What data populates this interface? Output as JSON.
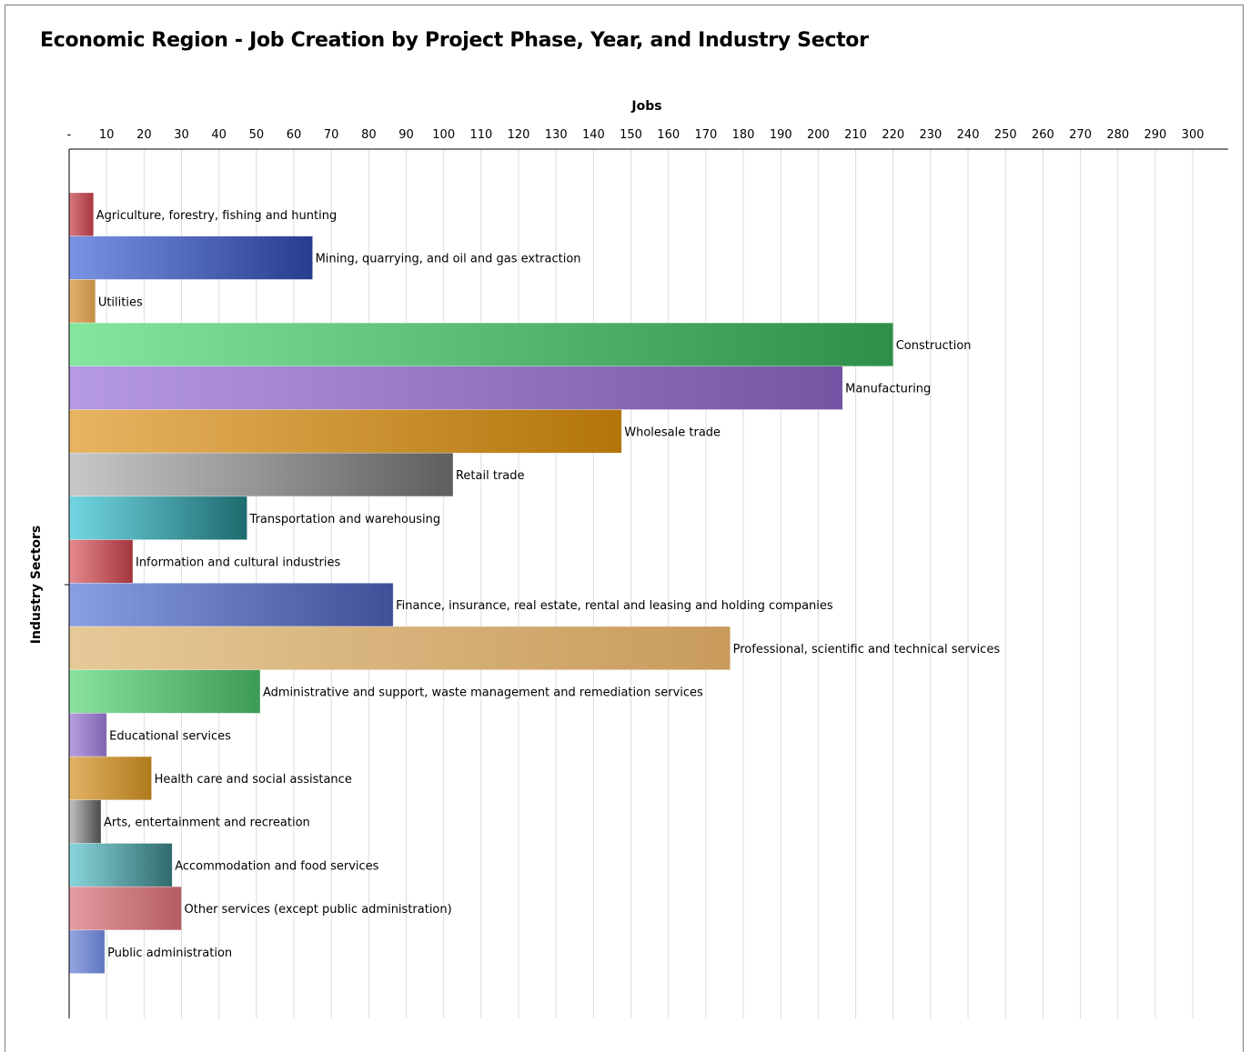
{
  "title": "Economic Region - Job Creation by Project Phase, Year, and Industry Sector",
  "chart_data": {
    "type": "bar",
    "orientation": "horizontal",
    "title": "Economic Region - Job Creation by Project Phase, Year, and Industry Sector",
    "xlabel": "Jobs",
    "ylabel": "Industry Sectors",
    "xlim": [
      0,
      310
    ],
    "x_tick_labels": [
      "-",
      "10",
      "20",
      "30",
      "40",
      "50",
      "60",
      "70",
      "80",
      "90",
      "100",
      "110",
      "120",
      "130",
      "140",
      "150",
      "160",
      "170",
      "180",
      "190",
      "200",
      "210",
      "220",
      "230",
      "240",
      "250",
      "260",
      "270",
      "280",
      "290",
      "300"
    ],
    "x_tick_values": [
      0,
      10,
      20,
      30,
      40,
      50,
      60,
      70,
      80,
      90,
      100,
      110,
      120,
      130,
      140,
      150,
      160,
      170,
      180,
      190,
      200,
      210,
      220,
      230,
      240,
      250,
      260,
      270,
      280,
      290,
      300
    ],
    "grid": "vertical",
    "legend": "none",
    "categories": [
      "Agriculture, forestry, fishing and hunting",
      "Mining, quarrying, and oil and gas extraction",
      "Utilities",
      "Construction",
      "Manufacturing",
      "Wholesale trade",
      "Retail trade",
      "Transportation and warehousing",
      "Information and cultural industries",
      "Finance, insurance, real estate, rental and leasing and holding companies",
      "Professional, scientific and technical services",
      "Administrative and support, waste management and remediation services",
      "Educational services",
      "Health care and social assistance",
      "Arts, entertainment and recreation",
      "Accommodation and food services",
      "Other services (except public administration)",
      "Public administration"
    ],
    "values": [
      6.5,
      65,
      7,
      220,
      206.5,
      147.5,
      102.5,
      47.5,
      17,
      86.5,
      176.5,
      51,
      10,
      22,
      8.5,
      27.5,
      30,
      9.5
    ],
    "colors": [
      [
        "#d77a80",
        "#a8363f"
      ],
      [
        "#7b93e4",
        "#283c8f"
      ],
      [
        "#e2b26e",
        "#c38e47"
      ],
      [
        "#85e69e",
        "#2e8f48"
      ],
      [
        "#b699e6",
        "#7454a3"
      ],
      [
        "#e8b463",
        "#b37509"
      ],
      [
        "#c8c8c8",
        "#5e5e5e"
      ],
      [
        "#73d7e3",
        "#1d6b6f"
      ],
      [
        "#e58a8e",
        "#a4363d"
      ],
      [
        "#8a9ee2",
        "#3e5098"
      ],
      [
        "#e6c999",
        "#c89b5b"
      ],
      [
        "#8ae2a0",
        "#3c9b55"
      ],
      [
        "#b79fe0",
        "#8163b0"
      ],
      [
        "#e2b365",
        "#b07a1c"
      ],
      [
        "#c3c3c3",
        "#4a4a4a"
      ],
      [
        "#8ad6dc",
        "#2f6a6e"
      ],
      [
        "#e49ca0",
        "#b45c62"
      ],
      [
        "#93a6e0",
        "#6176c2"
      ]
    ]
  }
}
